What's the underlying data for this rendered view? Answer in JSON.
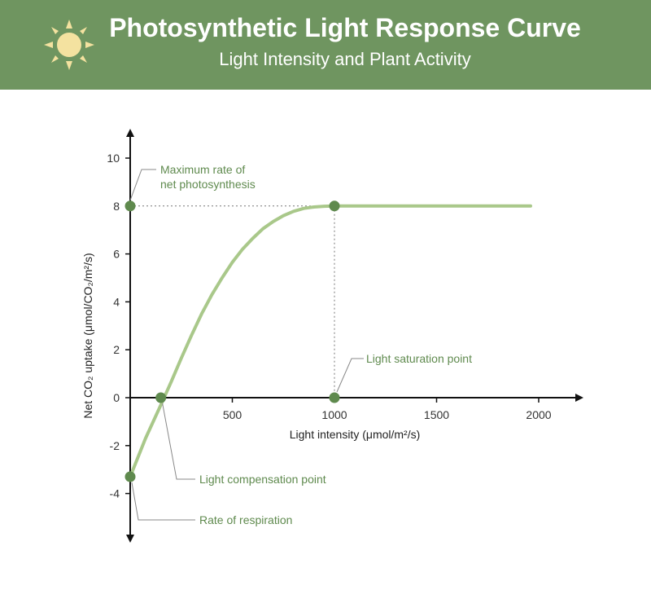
{
  "header": {
    "title": "Photosynthetic Light Response Curve",
    "subtitle": "Light Intensity and Plant Activity"
  },
  "colors": {
    "banner": "#6f9560",
    "curve": "#a9c88a",
    "point": "#5f8a4e",
    "sun": "#f4e2a0"
  },
  "chart_data": {
    "type": "line",
    "title": "Photosynthetic Light Response Curve",
    "subtitle": "Light Intensity and Plant Activity",
    "xlabel": "Light intensity (μmol/m²/s)",
    "ylabel": "Net CO₂ uptake (μmol/CO₂/m²/s)",
    "xlim": [
      0,
      2200
    ],
    "ylim": [
      -6,
      11
    ],
    "xticks": [
      500,
      1000,
      1500,
      2000
    ],
    "yticks": [
      -4,
      -2,
      0,
      2,
      4,
      6,
      8,
      10
    ],
    "series": [
      {
        "name": "Net CO₂ uptake",
        "x": [
          0,
          75,
          150,
          200,
          250,
          300,
          350,
          400,
          450,
          500,
          550,
          600,
          650,
          700,
          750,
          800,
          850,
          900,
          950,
          1000,
          1200,
          1400,
          1600,
          1800,
          1960
        ],
        "y": [
          -3.3,
          -1.7,
          -0.3,
          0.65,
          1.65,
          2.6,
          3.5,
          4.3,
          5.0,
          5.65,
          6.2,
          6.65,
          7.05,
          7.35,
          7.6,
          7.78,
          7.9,
          7.96,
          7.99,
          8.0,
          8.0,
          8.0,
          8.0,
          8.0,
          8.0
        ]
      }
    ],
    "points": [
      {
        "name": "max-rate",
        "x": 0,
        "y": 8
      },
      {
        "name": "saturation-curve",
        "x": 1000,
        "y": 8
      },
      {
        "name": "saturation-axis",
        "x": 1000,
        "y": 0
      },
      {
        "name": "compensation",
        "x": 150,
        "y": 0
      },
      {
        "name": "respiration",
        "x": 0,
        "y": -3.3
      }
    ],
    "annotations": {
      "max_rate_line1": "Maximum rate of",
      "max_rate_line2": "net photosynthesis",
      "saturation": "Light saturation point",
      "compensation": "Light compensation point",
      "respiration": "Rate of respiration"
    }
  }
}
